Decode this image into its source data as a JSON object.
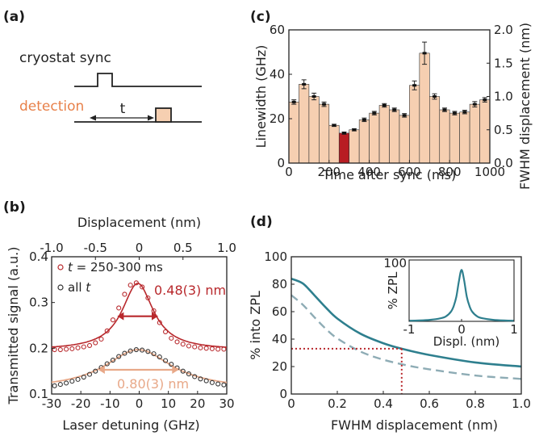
{
  "colors": {
    "bar_fill": "#f6cfb1",
    "bar_highlight": "#b81d23",
    "dark_red": "#b8282c",
    "peach": "#e8a888",
    "detection_orange": "#e8814a",
    "teal": "#2e7f8e",
    "teal_light": "#8eacb5",
    "axis": "#222222"
  },
  "panel_a": {
    "label": "(a)",
    "sync_label": "cryostat sync",
    "detection_label": "detection",
    "t_label": "t"
  },
  "chart_data": [
    {
      "panel": "(c)",
      "type": "bar",
      "xlabel": "Time after sync (ms)",
      "ylabel": "Linewidth (GHz)",
      "ylabel_right": "FWHM displacement (nm)",
      "xlim": [
        0,
        1000
      ],
      "ylim": [
        0,
        60
      ],
      "ylim_right": [
        0,
        2.0
      ],
      "xticks": [
        "0",
        "200",
        "400",
        "600",
        "800",
        "1000"
      ],
      "yticks": [
        "0",
        "20",
        "40",
        "60"
      ],
      "yticks_right": [
        "0.0",
        "0.5",
        "1.0",
        "1.5",
        "2.0"
      ],
      "bar_width_ms": 50,
      "x": [
        25,
        75,
        125,
        175,
        225,
        275,
        325,
        375,
        425,
        475,
        525,
        575,
        625,
        675,
        725,
        775,
        825,
        875,
        925,
        975
      ],
      "values": [
        27.5,
        35.5,
        30.0,
        26.5,
        17.0,
        13.5,
        15.0,
        19.5,
        22.5,
        26.0,
        24.0,
        21.5,
        35.0,
        49.5,
        30.0,
        24.0,
        22.5,
        23.0,
        26.5,
        28.5
      ],
      "errors": [
        1.0,
        2.0,
        1.5,
        1.0,
        0.5,
        0.5,
        0.5,
        0.8,
        0.8,
        0.8,
        0.8,
        0.8,
        2.0,
        5.0,
        1.2,
        0.8,
        0.8,
        0.8,
        1.2,
        1.0
      ],
      "highlight_index": 5
    },
    {
      "panel": "(b)",
      "type": "scatter",
      "xlabel": "Laser detuning (GHz)",
      "xlabel_top": "Displacement (nm)",
      "ylabel": "Transmitted signal (a.u.)",
      "xlim": [
        -30,
        30
      ],
      "ylim": [
        0.1,
        0.4
      ],
      "xticks": [
        "-30",
        "-20",
        "-10",
        "0",
        "10",
        "20",
        "30"
      ],
      "xticks_top": [
        "-1.0",
        "-0.5",
        "0",
        "0.5",
        "1.0"
      ],
      "yticks": [
        "0.1",
        "0.2",
        "0.3",
        "0.4"
      ],
      "legend_position": "top-left",
      "legend_t_symbol": "t",
      "legend_t_value": " = 250-300 ms",
      "legend_all_prefix": "all ",
      "legend_all_symbol": "t",
      "annotation_red": "0.48(3) nm",
      "annotation_peach": "0.80(3) nm",
      "series": [
        {
          "name": "t = 250-300 ms",
          "x": [
            -29,
            -27,
            -25,
            -23,
            -21,
            -19,
            -17,
            -15,
            -13,
            -11,
            -9,
            -7,
            -5,
            -3,
            -1,
            1,
            3,
            5,
            7,
            9,
            11,
            13,
            15,
            17,
            19,
            21,
            23,
            25,
            27,
            29
          ],
          "y": [
            0.197,
            0.197,
            0.198,
            0.199,
            0.201,
            0.203,
            0.206,
            0.212,
            0.22,
            0.238,
            0.262,
            0.288,
            0.318,
            0.338,
            0.343,
            0.334,
            0.31,
            0.282,
            0.256,
            0.236,
            0.222,
            0.214,
            0.209,
            0.205,
            0.203,
            0.201,
            0.2,
            0.199,
            0.198,
            0.198
          ]
        },
        {
          "name": "all t",
          "x": [
            -29,
            -27,
            -25,
            -23,
            -21,
            -19,
            -17,
            -15,
            -13,
            -11,
            -9,
            -7,
            -5,
            -3,
            -1,
            1,
            3,
            5,
            7,
            9,
            11,
            13,
            15,
            17,
            19,
            21,
            23,
            25,
            27,
            29
          ],
          "y": [
            0.118,
            0.121,
            0.124,
            0.128,
            0.132,
            0.137,
            0.143,
            0.15,
            0.158,
            0.166,
            0.174,
            0.182,
            0.189,
            0.194,
            0.197,
            0.196,
            0.193,
            0.188,
            0.181,
            0.173,
            0.165,
            0.157,
            0.15,
            0.144,
            0.138,
            0.133,
            0.129,
            0.125,
            0.122,
            0.12
          ]
        }
      ]
    },
    {
      "panel": "(d)",
      "type": "line",
      "xlabel": "FWHM displacement (nm)",
      "ylabel": "% into ZPL",
      "xlim": [
        0,
        1.0
      ],
      "ylim": [
        0,
        100
      ],
      "xticks": [
        "0",
        "0.2",
        "0.4",
        "0.6",
        "0.8",
        "1.0"
      ],
      "yticks": [
        "0",
        "20",
        "40",
        "60",
        "80",
        "100"
      ],
      "series": [
        {
          "style": "solid",
          "x": [
            0,
            0.05,
            0.1,
            0.15,
            0.2,
            0.3,
            0.4,
            0.48,
            0.6,
            0.8,
            1.0
          ],
          "y": [
            84,
            80.5,
            72,
            63,
            55,
            44,
            37,
            33,
            28.5,
            23,
            20
          ]
        },
        {
          "style": "dashed",
          "x": [
            0,
            0.05,
            0.1,
            0.15,
            0.2,
            0.3,
            0.4,
            0.5,
            0.6,
            0.8,
            1.0
          ],
          "y": [
            72,
            65,
            56,
            47.5,
            40.5,
            31,
            25,
            21,
            18,
            13.5,
            11
          ]
        }
      ],
      "marker": {
        "x": 0.48,
        "y": 33
      },
      "inset": {
        "type": "line",
        "xlabel": "Displ. (nm)",
        "ylabel": "% ZPL",
        "xlim": [
          -1,
          1
        ],
        "ylim": [
          0,
          100
        ],
        "xticks": [
          "-1",
          "0",
          "1"
        ],
        "yticks": [
          "100"
        ],
        "x": [
          -1.0,
          -0.8,
          -0.6,
          -0.4,
          -0.3,
          -0.2,
          -0.15,
          -0.1,
          -0.05,
          0,
          0.05,
          0.1,
          0.15,
          0.2,
          0.3,
          0.4,
          0.6,
          0.8,
          1.0
        ],
        "y": [
          1,
          1.5,
          2.5,
          5,
          8,
          16,
          25,
          40,
          66,
          84,
          66,
          40,
          25,
          16,
          8,
          5,
          2.5,
          1.5,
          1
        ]
      }
    }
  ]
}
